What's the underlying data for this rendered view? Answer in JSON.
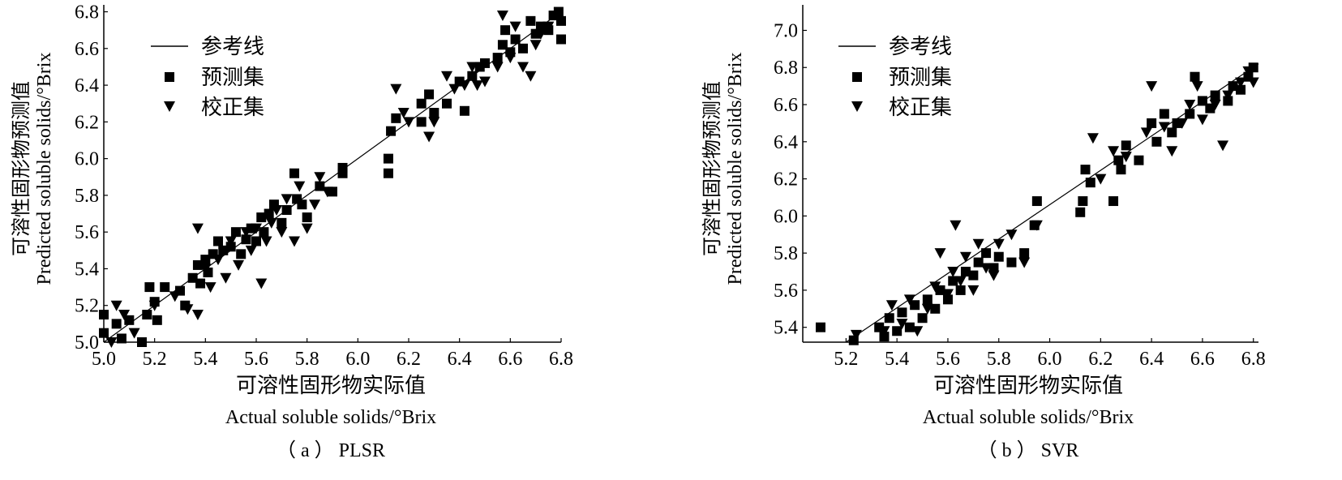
{
  "chart_data": [
    {
      "type": "scatter",
      "panel": "a",
      "caption": "（ a ） PLSR",
      "xlabel_cn": "可溶性固形物实际值",
      "xlabel_en": "Actual soluble solids/°Brix",
      "ylabel_cn": "可溶性固形物预测值",
      "ylabel_en": "Predicted soluble solids/°Brix",
      "xlim": [
        5.0,
        6.8
      ],
      "ylim": [
        5.0,
        6.82
      ],
      "xticks": [
        "5.0",
        "5.2",
        "5.4",
        "5.6",
        "5.8",
        "6.0",
        "6.2",
        "6.4",
        "6.6",
        "6.8"
      ],
      "yticks": [
        "5.0",
        "5.2",
        "5.4",
        "5.6",
        "5.8",
        "6.0",
        "6.2",
        "6.4",
        "6.6",
        "6.8"
      ],
      "legend_position": "top-left",
      "legend": [
        "参考线",
        "预测集",
        "校正集"
      ],
      "reference_line": [
        [
          5.0,
          5.0
        ],
        [
          6.8,
          6.8
        ]
      ],
      "series": [
        {
          "name": "预测集",
          "marker": "square",
          "points": [
            [
              5.0,
              5.05
            ],
            [
              5.0,
              5.15
            ],
            [
              5.05,
              5.1
            ],
            [
              5.07,
              5.02
            ],
            [
              5.1,
              5.12
            ],
            [
              5.15,
              5.0
            ],
            [
              5.17,
              5.15
            ],
            [
              5.18,
              5.3
            ],
            [
              5.2,
              5.22
            ],
            [
              5.21,
              5.12
            ],
            [
              5.24,
              5.3
            ],
            [
              5.3,
              5.28
            ],
            [
              5.32,
              5.2
            ],
            [
              5.35,
              5.35
            ],
            [
              5.37,
              5.42
            ],
            [
              5.38,
              5.32
            ],
            [
              5.4,
              5.45
            ],
            [
              5.41,
              5.38
            ],
            [
              5.43,
              5.48
            ],
            [
              5.45,
              5.55
            ],
            [
              5.47,
              5.5
            ],
            [
              5.5,
              5.52
            ],
            [
              5.52,
              5.6
            ],
            [
              5.54,
              5.48
            ],
            [
              5.56,
              5.56
            ],
            [
              5.58,
              5.62
            ],
            [
              5.6,
              5.55
            ],
            [
              5.62,
              5.68
            ],
            [
              5.63,
              5.6
            ],
            [
              5.65,
              5.7
            ],
            [
              5.67,
              5.75
            ],
            [
              5.7,
              5.65
            ],
            [
              5.72,
              5.72
            ],
            [
              5.75,
              5.92
            ],
            [
              5.76,
              5.78
            ],
            [
              5.78,
              5.75
            ],
            [
              5.8,
              5.68
            ],
            [
              5.85,
              5.85
            ],
            [
              5.9,
              5.82
            ],
            [
              5.94,
              5.95
            ],
            [
              5.94,
              5.92
            ],
            [
              6.12,
              5.92
            ],
            [
              6.12,
              6.0
            ],
            [
              6.13,
              6.15
            ],
            [
              6.15,
              6.22
            ],
            [
              6.25,
              6.2
            ],
            [
              6.25,
              6.3
            ],
            [
              6.28,
              6.35
            ],
            [
              6.3,
              6.25
            ],
            [
              6.35,
              6.3
            ],
            [
              6.4,
              6.42
            ],
            [
              6.42,
              6.26
            ],
            [
              6.45,
              6.45
            ],
            [
              6.48,
              6.5
            ],
            [
              6.5,
              6.52
            ],
            [
              6.55,
              6.55
            ],
            [
              6.57,
              6.62
            ],
            [
              6.58,
              6.7
            ],
            [
              6.6,
              6.58
            ],
            [
              6.62,
              6.65
            ],
            [
              6.65,
              6.6
            ],
            [
              6.68,
              6.75
            ],
            [
              6.7,
              6.68
            ],
            [
              6.72,
              6.72
            ],
            [
              6.75,
              6.7
            ],
            [
              6.77,
              6.78
            ],
            [
              6.79,
              6.8
            ],
            [
              6.8,
              6.65
            ],
            [
              6.8,
              6.75
            ]
          ]
        },
        {
          "name": "校正集",
          "marker": "triangle-down",
          "points": [
            [
              5.03,
              5.0
            ],
            [
              5.05,
              5.2
            ],
            [
              5.08,
              5.15
            ],
            [
              5.12,
              5.05
            ],
            [
              5.2,
              5.2
            ],
            [
              5.28,
              5.25
            ],
            [
              5.33,
              5.18
            ],
            [
              5.37,
              5.15
            ],
            [
              5.37,
              5.62
            ],
            [
              5.4,
              5.4
            ],
            [
              5.42,
              5.3
            ],
            [
              5.45,
              5.45
            ],
            [
              5.48,
              5.35
            ],
            [
              5.5,
              5.55
            ],
            [
              5.53,
              5.42
            ],
            [
              5.56,
              5.6
            ],
            [
              5.58,
              5.5
            ],
            [
              5.6,
              5.62
            ],
            [
              5.62,
              5.32
            ],
            [
              5.64,
              5.55
            ],
            [
              5.66,
              5.65
            ],
            [
              5.68,
              5.72
            ],
            [
              5.7,
              5.6
            ],
            [
              5.72,
              5.78
            ],
            [
              5.75,
              5.55
            ],
            [
              5.77,
              5.85
            ],
            [
              5.8,
              5.62
            ],
            [
              5.83,
              5.75
            ],
            [
              5.85,
              5.9
            ],
            [
              5.88,
              5.82
            ],
            [
              6.15,
              6.38
            ],
            [
              6.18,
              6.25
            ],
            [
              6.2,
              6.2
            ],
            [
              6.28,
              6.12
            ],
            [
              6.3,
              6.2
            ],
            [
              6.35,
              6.45
            ],
            [
              6.38,
              6.38
            ],
            [
              6.42,
              6.4
            ],
            [
              6.45,
              6.5
            ],
            [
              6.47,
              6.4
            ],
            [
              6.5,
              6.42
            ],
            [
              6.55,
              6.5
            ],
            [
              6.57,
              6.78
            ],
            [
              6.6,
              6.55
            ],
            [
              6.62,
              6.72
            ],
            [
              6.65,
              6.5
            ],
            [
              6.68,
              6.45
            ],
            [
              6.7,
              6.62
            ],
            [
              6.72,
              6.68
            ],
            [
              6.75,
              6.72
            ]
          ]
        }
      ]
    },
    {
      "type": "scatter",
      "panel": "b",
      "caption": "（ b ） SVR",
      "xlabel_cn": "可溶性固形物实际值",
      "xlabel_en": "Actual soluble solids/°Brix",
      "ylabel_cn": "可溶性固形物预测值",
      "ylabel_en": "Predicted soluble solids/°Brix",
      "xlim": [
        5.03,
        6.82
      ],
      "ylim": [
        5.32,
        7.12
      ],
      "xticks": [
        "5.2",
        "5.4",
        "5.6",
        "5.8",
        "6.0",
        "6.2",
        "6.4",
        "6.6",
        "6.8"
      ],
      "yticks": [
        "5.4",
        "5.6",
        "5.8",
        "6.0",
        "6.2",
        "6.4",
        "6.6",
        "6.8",
        "7.0"
      ],
      "legend_position": "top-left",
      "legend": [
        "参考线",
        "预测集",
        "校正集"
      ],
      "reference_line": [
        [
          5.2,
          5.32
        ],
        [
          6.82,
          6.82
        ]
      ],
      "series": [
        {
          "name": "预测集",
          "marker": "square",
          "points": [
            [
              5.1,
              5.4
            ],
            [
              5.23,
              5.33
            ],
            [
              5.33,
              5.4
            ],
            [
              5.35,
              5.35
            ],
            [
              5.37,
              5.45
            ],
            [
              5.4,
              5.38
            ],
            [
              5.42,
              5.48
            ],
            [
              5.45,
              5.4
            ],
            [
              5.47,
              5.52
            ],
            [
              5.5,
              5.45
            ],
            [
              5.52,
              5.55
            ],
            [
              5.55,
              5.5
            ],
            [
              5.57,
              5.6
            ],
            [
              5.6,
              5.55
            ],
            [
              5.62,
              5.65
            ],
            [
              5.65,
              5.6
            ],
            [
              5.67,
              5.7
            ],
            [
              5.7,
              5.68
            ],
            [
              5.72,
              5.75
            ],
            [
              5.75,
              5.8
            ],
            [
              5.78,
              5.72
            ],
            [
              5.8,
              5.78
            ],
            [
              5.85,
              5.75
            ],
            [
              5.9,
              5.8
            ],
            [
              5.94,
              5.95
            ],
            [
              5.95,
              6.08
            ],
            [
              6.12,
              6.02
            ],
            [
              6.13,
              6.08
            ],
            [
              6.14,
              6.25
            ],
            [
              6.16,
              6.18
            ],
            [
              6.25,
              6.08
            ],
            [
              6.27,
              6.3
            ],
            [
              6.28,
              6.25
            ],
            [
              6.3,
              6.38
            ],
            [
              6.35,
              6.3
            ],
            [
              6.4,
              6.5
            ],
            [
              6.42,
              6.4
            ],
            [
              6.45,
              6.55
            ],
            [
              6.48,
              6.45
            ],
            [
              6.5,
              6.5
            ],
            [
              6.55,
              6.55
            ],
            [
              6.57,
              6.75
            ],
            [
              6.6,
              6.62
            ],
            [
              6.63,
              6.58
            ],
            [
              6.65,
              6.65
            ],
            [
              6.7,
              6.62
            ],
            [
              6.72,
              6.7
            ],
            [
              6.75,
              6.68
            ],
            [
              6.78,
              6.75
            ],
            [
              6.8,
              6.8
            ]
          ]
        },
        {
          "name": "校正集",
          "marker": "triangle-down",
          "points": [
            [
              5.24,
              5.36
            ],
            [
              5.35,
              5.38
            ],
            [
              5.38,
              5.52
            ],
            [
              5.42,
              5.42
            ],
            [
              5.45,
              5.55
            ],
            [
              5.48,
              5.38
            ],
            [
              5.52,
              5.5
            ],
            [
              5.55,
              5.62
            ],
            [
              5.57,
              5.8
            ],
            [
              5.6,
              5.58
            ],
            [
              5.62,
              5.7
            ],
            [
              5.63,
              5.95
            ],
            [
              5.65,
              5.65
            ],
            [
              5.67,
              5.78
            ],
            [
              5.7,
              5.6
            ],
            [
              5.72,
              5.85
            ],
            [
              5.75,
              5.72
            ],
            [
              5.78,
              5.68
            ],
            [
              5.8,
              5.85
            ],
            [
              5.85,
              5.9
            ],
            [
              5.9,
              5.75
            ],
            [
              5.95,
              5.95
            ],
            [
              6.17,
              6.42
            ],
            [
              6.2,
              6.2
            ],
            [
              6.25,
              6.35
            ],
            [
              6.3,
              6.32
            ],
            [
              6.38,
              6.45
            ],
            [
              6.4,
              6.7
            ],
            [
              6.45,
              6.48
            ],
            [
              6.48,
              6.35
            ],
            [
              6.52,
              6.5
            ],
            [
              6.55,
              6.6
            ],
            [
              6.58,
              6.7
            ],
            [
              6.6,
              6.52
            ],
            [
              6.65,
              6.6
            ],
            [
              6.68,
              6.38
            ],
            [
              6.7,
              6.65
            ],
            [
              6.75,
              6.72
            ],
            [
              6.78,
              6.78
            ],
            [
              6.8,
              6.72
            ]
          ]
        }
      ]
    }
  ]
}
